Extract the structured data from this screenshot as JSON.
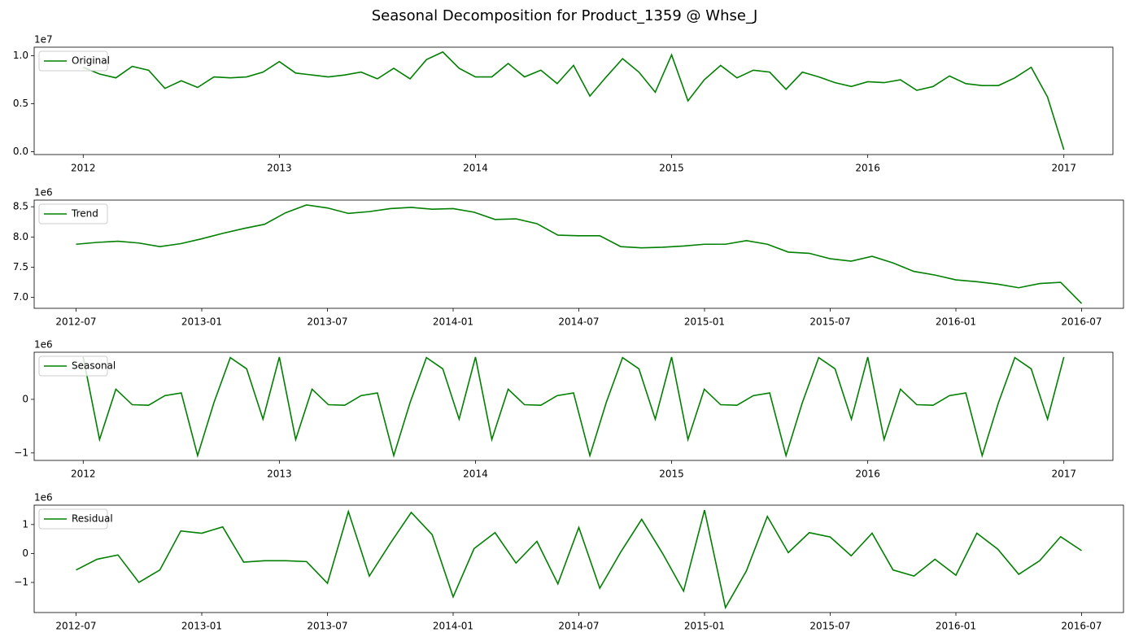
{
  "title": "Seasonal Decomposition for Product_1359 @ Whse_J",
  "chart_data": [
    {
      "type": "line",
      "y_multiplier": "1e7",
      "legend": "upper left",
      "x": [
        "2012-01",
        "2012-02",
        "2012-03",
        "2012-04",
        "2012-05",
        "2012-06",
        "2012-07",
        "2012-08",
        "2012-09",
        "2012-10",
        "2012-11",
        "2012-12",
        "2013-01",
        "2013-02",
        "2013-03",
        "2013-04",
        "2013-05",
        "2013-06",
        "2013-07",
        "2013-08",
        "2013-09",
        "2013-10",
        "2013-11",
        "2013-12",
        "2014-01",
        "2014-02",
        "2014-03",
        "2014-04",
        "2014-05",
        "2014-06",
        "2014-07",
        "2014-08",
        "2014-09",
        "2014-10",
        "2014-11",
        "2014-12",
        "2015-01",
        "2015-02",
        "2015-03",
        "2015-04",
        "2015-05",
        "2015-06",
        "2015-07",
        "2015-08",
        "2015-09",
        "2015-10",
        "2015-11",
        "2015-12",
        "2016-01",
        "2016-02",
        "2016-03",
        "2016-04",
        "2016-05",
        "2016-06",
        "2016-07",
        "2016-08",
        "2016-09",
        "2016-10",
        "2016-11",
        "2016-12",
        "2017-01"
      ],
      "series": [
        {
          "name": "Original",
          "color": "#008000",
          "values": [
            0.88,
            0.81,
            0.77,
            0.89,
            0.85,
            0.66,
            0.74,
            0.67,
            0.78,
            0.77,
            0.78,
            0.83,
            0.94,
            0.82,
            0.8,
            0.78,
            0.8,
            0.83,
            0.76,
            0.87,
            0.76,
            0.96,
            1.04,
            0.87,
            0.78,
            0.78,
            0.92,
            0.78,
            0.85,
            0.71,
            0.9,
            0.58,
            0.78,
            0.97,
            0.83,
            0.62,
            1.01,
            0.53,
            0.75,
            0.9,
            0.77,
            0.85,
            0.83,
            0.65,
            0.83,
            0.78,
            0.72,
            0.68,
            0.73,
            0.72,
            0.75,
            0.64,
            0.68,
            0.79,
            0.71,
            0.69,
            0.69,
            0.77,
            0.88,
            0.57,
            0.02
          ]
        }
      ],
      "xlim": [
        "2011-10",
        "2017-04"
      ],
      "xticks": [
        {
          "value": "2012-01",
          "label": "2012"
        },
        {
          "value": "2013-01",
          "label": "2013"
        },
        {
          "value": "2014-01",
          "label": "2014"
        },
        {
          "value": "2015-01",
          "label": "2015"
        },
        {
          "value": "2016-01",
          "label": "2016"
        },
        {
          "value": "2017-01",
          "label": "2017"
        }
      ],
      "ylim": [
        -0.03,
        1.09
      ],
      "yticks": [
        {
          "value": 0,
          "label": "0.0"
        },
        0.5,
        {
          "value": 1,
          "label": "1.0"
        }
      ]
    },
    {
      "type": "line",
      "y_multiplier": "1e6",
      "legend": "upper left",
      "x": [
        "2012-07",
        "2012-08",
        "2012-09",
        "2012-10",
        "2012-11",
        "2012-12",
        "2013-01",
        "2013-02",
        "2013-03",
        "2013-04",
        "2013-05",
        "2013-06",
        "2013-07",
        "2013-08",
        "2013-09",
        "2013-10",
        "2013-11",
        "2013-12",
        "2014-01",
        "2014-02",
        "2014-03",
        "2014-04",
        "2014-05",
        "2014-06",
        "2014-07",
        "2014-08",
        "2014-09",
        "2014-10",
        "2014-11",
        "2014-12",
        "2015-01",
        "2015-02",
        "2015-03",
        "2015-04",
        "2015-05",
        "2015-06",
        "2015-07",
        "2015-08",
        "2015-09",
        "2015-10",
        "2015-11",
        "2015-12",
        "2016-01",
        "2016-02",
        "2016-03",
        "2016-04",
        "2016-05",
        "2016-06",
        "2016-07"
      ],
      "series": [
        {
          "name": "Trend",
          "color": "#008000",
          "values": [
            7.88,
            7.91,
            7.93,
            7.9,
            7.84,
            7.89,
            7.97,
            8.06,
            8.14,
            8.21,
            8.4,
            8.53,
            8.48,
            8.39,
            8.42,
            8.47,
            8.49,
            8.46,
            8.47,
            8.41,
            8.29,
            8.3,
            8.22,
            8.03,
            8.02,
            8.02,
            7.84,
            7.82,
            7.83,
            7.85,
            7.88,
            7.88,
            7.94,
            7.88,
            7.75,
            7.73,
            7.64,
            7.6,
            7.68,
            7.57,
            7.43,
            7.37,
            7.29,
            7.26,
            7.22,
            7.16,
            7.23,
            7.25,
            6.9
          ]
        }
      ],
      "xlim": [
        "2012-05",
        "2016-09"
      ],
      "xticks": [
        "2012-07",
        "2013-01",
        "2013-07",
        "2014-01",
        "2014-07",
        "2015-01",
        "2015-07",
        "2016-01",
        "2016-07"
      ],
      "ylim": [
        6.82,
        8.61
      ],
      "yticks": [
        {
          "value": 7,
          "label": "7.0"
        },
        7.5,
        {
          "value": 8,
          "label": "8.0"
        },
        8.5
      ]
    },
    {
      "type": "line",
      "y_multiplier": "1e6",
      "legend": "upper left",
      "x": [
        "2012-01",
        "2012-02",
        "2012-03",
        "2012-04",
        "2012-05",
        "2012-06",
        "2012-07",
        "2012-08",
        "2012-09",
        "2012-10",
        "2012-11",
        "2012-12",
        "2013-01",
        "2013-02",
        "2013-03",
        "2013-04",
        "2013-05",
        "2013-06",
        "2013-07",
        "2013-08",
        "2013-09",
        "2013-10",
        "2013-11",
        "2013-12",
        "2014-01",
        "2014-02",
        "2014-03",
        "2014-04",
        "2014-05",
        "2014-06",
        "2014-07",
        "2014-08",
        "2014-09",
        "2014-10",
        "2014-11",
        "2014-12",
        "2015-01",
        "2015-02",
        "2015-03",
        "2015-04",
        "2015-05",
        "2015-06",
        "2015-07",
        "2015-08",
        "2015-09",
        "2015-10",
        "2015-11",
        "2015-12",
        "2016-01",
        "2016-02",
        "2016-03",
        "2016-04",
        "2016-05",
        "2016-06",
        "2016-07",
        "2016-08",
        "2016-09",
        "2016-10",
        "2016-11",
        "2016-12",
        "2017-01"
      ],
      "series": [
        {
          "name": "Seasonal",
          "color": "#008000",
          "values": [
            0.79,
            -0.75,
            0.19,
            -0.1,
            -0.11,
            0.07,
            0.12,
            -1.05,
            -0.06,
            0.78,
            0.57,
            -0.37,
            0.79,
            -0.75,
            0.19,
            -0.1,
            -0.11,
            0.07,
            0.12,
            -1.05,
            -0.06,
            0.78,
            0.57,
            -0.37,
            0.79,
            -0.75,
            0.19,
            -0.1,
            -0.11,
            0.07,
            0.12,
            -1.05,
            -0.06,
            0.78,
            0.57,
            -0.37,
            0.79,
            -0.75,
            0.19,
            -0.1,
            -0.11,
            0.07,
            0.12,
            -1.05,
            -0.06,
            0.78,
            0.57,
            -0.37,
            0.79,
            -0.75,
            0.19,
            -0.1,
            -0.11,
            0.07,
            0.12,
            -1.05,
            -0.06,
            0.78,
            0.57,
            -0.37,
            0.79
          ]
        }
      ],
      "xlim": [
        "2011-10",
        "2017-04"
      ],
      "xticks": [
        {
          "value": "2012-01",
          "label": "2012"
        },
        {
          "value": "2013-01",
          "label": "2013"
        },
        {
          "value": "2014-01",
          "label": "2014"
        },
        {
          "value": "2015-01",
          "label": "2015"
        },
        {
          "value": "2016-01",
          "label": "2016"
        },
        {
          "value": "2017-01",
          "label": "2017"
        }
      ],
      "ylim": [
        -1.14,
        0.88
      ],
      "yticks": [
        {
          "value": -1,
          "label": "−1"
        },
        0
      ]
    },
    {
      "type": "line",
      "y_multiplier": "1e6",
      "legend": "upper left",
      "x": [
        "2012-07",
        "2012-08",
        "2012-09",
        "2012-10",
        "2012-11",
        "2012-12",
        "2013-01",
        "2013-02",
        "2013-03",
        "2013-04",
        "2013-05",
        "2013-06",
        "2013-07",
        "2013-08",
        "2013-09",
        "2013-10",
        "2013-11",
        "2013-12",
        "2014-01",
        "2014-02",
        "2014-03",
        "2014-04",
        "2014-05",
        "2014-06",
        "2014-07",
        "2014-08",
        "2014-09",
        "2014-10",
        "2014-11",
        "2014-12",
        "2015-01",
        "2015-02",
        "2015-03",
        "2015-04",
        "2015-05",
        "2015-06",
        "2015-07",
        "2015-08",
        "2015-09",
        "2015-10",
        "2015-11",
        "2015-12",
        "2016-01",
        "2016-02",
        "2016-03",
        "2016-04",
        "2016-05",
        "2016-06",
        "2016-07"
      ],
      "series": [
        {
          "name": "Residual",
          "color": "#008000",
          "values": [
            -0.57,
            -0.2,
            -0.05,
            -1.0,
            -0.57,
            0.78,
            0.7,
            0.92,
            -0.3,
            -0.25,
            -0.25,
            -0.28,
            -1.03,
            1.45,
            -0.78,
            0.35,
            1.42,
            0.65,
            -1.5,
            0.17,
            0.72,
            -0.33,
            0.42,
            -1.05,
            0.9,
            -1.2,
            0.05,
            1.18,
            0.0,
            -1.3,
            1.5,
            -1.87,
            -0.6,
            1.28,
            0.03,
            0.72,
            0.57,
            -0.08,
            0.7,
            -0.57,
            -0.78,
            -0.2,
            -0.75,
            0.7,
            0.15,
            -0.72,
            -0.25,
            0.58,
            0.1
          ]
        }
      ],
      "xlim": [
        "2012-05",
        "2016-09"
      ],
      "xticks": [
        "2012-07",
        "2013-01",
        "2013-07",
        "2014-01",
        "2014-07",
        "2015-01",
        "2015-07",
        "2016-01",
        "2016-07"
      ],
      "ylim": [
        -2.04,
        1.67
      ],
      "yticks": [
        {
          "value": -1,
          "label": "−1"
        },
        0,
        1
      ]
    }
  ]
}
